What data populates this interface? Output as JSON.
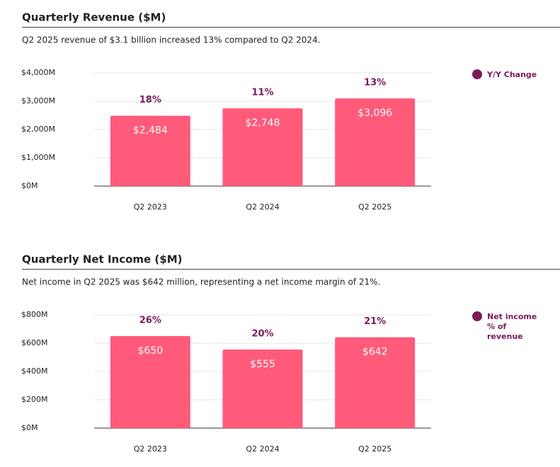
{
  "chart_data": [
    {
      "type": "bar",
      "title": "Quarterly Revenue ($M)",
      "subtitle": "Q2 2025 revenue of $3.1 billion increased 13% compared to Q2 2024.",
      "categories": [
        "Q2 2023",
        "Q2 2024",
        "Q2 2025"
      ],
      "values": [
        2484,
        2748,
        3096
      ],
      "value_labels": [
        "$2,484",
        "$2,748",
        "$3,096"
      ],
      "color": "#ff5a7a",
      "ylim": [
        0,
        4000
      ],
      "yticks": [
        {
          "value": 0,
          "label": "$0M"
        },
        {
          "value": 1000,
          "label": "$1,000M"
        },
        {
          "value": 2000,
          "label": "$2,000M"
        },
        {
          "value": 3000,
          "label": "$3,000M"
        },
        {
          "value": 4000,
          "label": "$4,000M"
        }
      ],
      "grid": true,
      "change": {
        "name": "Y/Y Change",
        "color": "#7a1a5a",
        "values": [
          18,
          11,
          13
        ],
        "value_labels": [
          "18%",
          "11%",
          "13%"
        ]
      }
    },
    {
      "type": "bar",
      "title": "Quarterly Net Income ($M)",
      "subtitle": "Net income in Q2 2025 was $642 million, representing a net income margin of 21%.",
      "categories": [
        "Q2 2023",
        "Q2 2024",
        "Q2 2025"
      ],
      "values": [
        650,
        555,
        642
      ],
      "value_labels": [
        "$650",
        "$555",
        "$642"
      ],
      "color": "#ff5a7a",
      "ylim": [
        0,
        800
      ],
      "yticks": [
        {
          "value": 0,
          "label": "$0M"
        },
        {
          "value": 200,
          "label": "$200M"
        },
        {
          "value": 400,
          "label": "$400M"
        },
        {
          "value": 600,
          "label": "$600M"
        },
        {
          "value": 800,
          "label": "$800M"
        }
      ],
      "grid": true,
      "change": {
        "name": "Net income % of revenue",
        "color": "#7a1a5a",
        "values": [
          26,
          20,
          21
        ],
        "value_labels": [
          "26%",
          "20%",
          "21%"
        ]
      }
    }
  ]
}
